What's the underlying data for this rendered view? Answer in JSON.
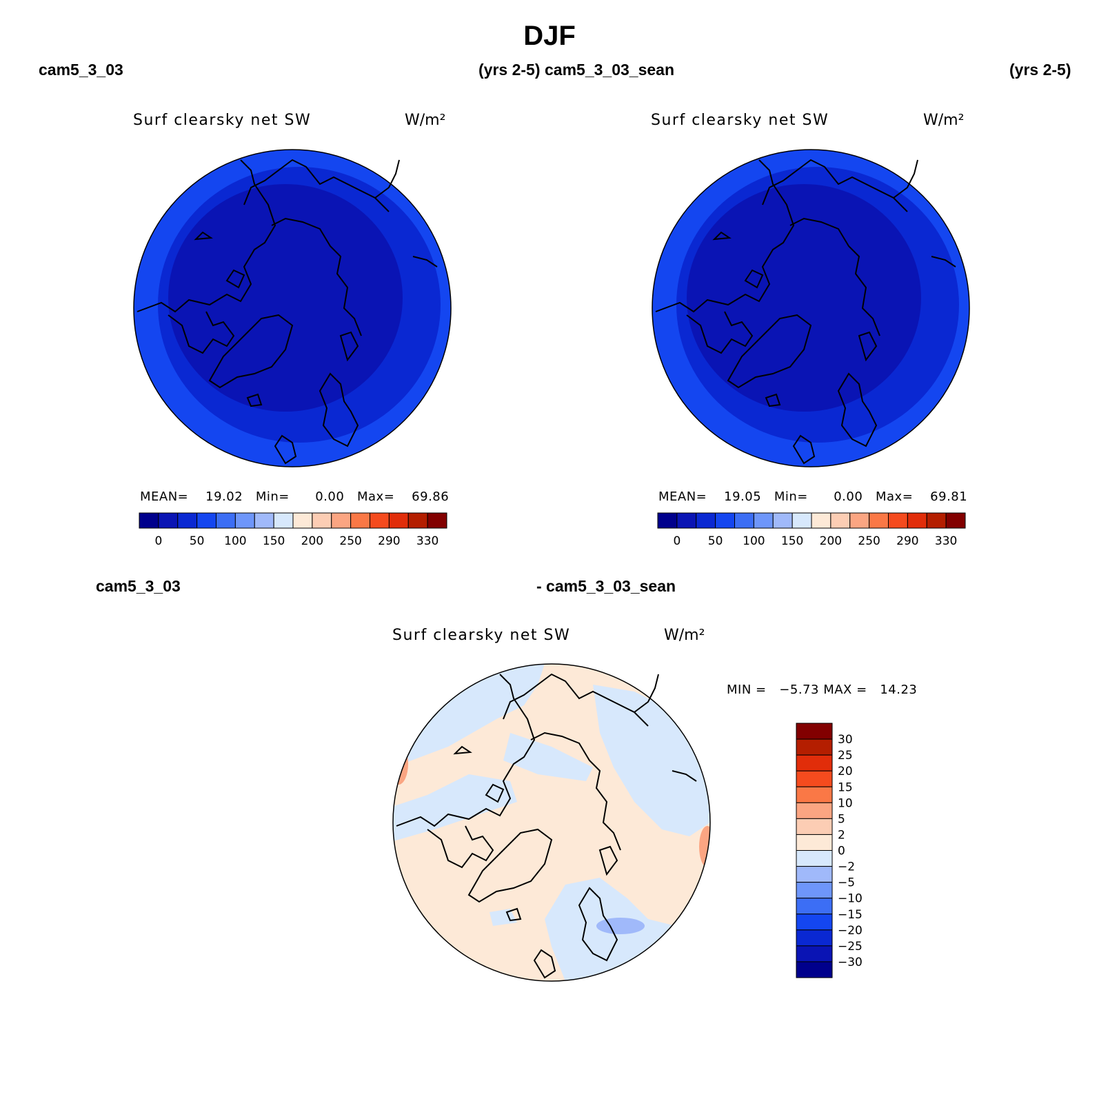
{
  "page": {
    "title": "DJF"
  },
  "headers": {
    "top_left_case": "cam5_3_03",
    "top_left_years": "(yrs 2-5)",
    "top_right_case": "cam5_3_03_sean",
    "top_right_years": "(yrs 2-5)",
    "bottom_left_case": "cam5_3_03",
    "bottom_right_case": "- cam5_3_03_sean"
  },
  "chart_data": [
    {
      "type": "heatmap",
      "projection": "north-polar-stereographic",
      "title": "Surf clearsky net SW",
      "units": "W/m²",
      "stats": {
        "mean_label": "MEAN=",
        "mean": "19.02",
        "min_label": "Min=",
        "min": "0.00",
        "max_label": "Max=",
        "max": "69.86"
      },
      "colorbar": {
        "orientation": "horizontal",
        "tick_labels": [
          "0",
          "50",
          "100",
          "150",
          "200",
          "250",
          "290",
          "330"
        ],
        "colors": [
          "#00008c",
          "#0a14b4",
          "#0a28d2",
          "#1446f0",
          "#3c6ef5",
          "#6e96fa",
          "#a0b9fa",
          "#d7e8fc",
          "#fde9d7",
          "#fccdb4",
          "#fba582",
          "#fa7846",
          "#f54b1e",
          "#e12d0a",
          "#b41e00",
          "#820000"
        ]
      },
      "field": {
        "range": [
          0,
          69.86
        ],
        "high_color": "#1446f0",
        "mid_color": "#0a28d2",
        "low_color": "#0a14b4"
      }
    },
    {
      "type": "heatmap",
      "projection": "north-polar-stereographic",
      "title": "Surf clearsky net SW",
      "units": "W/m²",
      "stats": {
        "mean_label": "MEAN=",
        "mean": "19.05",
        "min_label": "Min=",
        "min": "0.00",
        "max_label": "Max=",
        "max": "69.81"
      },
      "colorbar": {
        "orientation": "horizontal",
        "tick_labels": [
          "0",
          "50",
          "100",
          "150",
          "200",
          "250",
          "290",
          "330"
        ],
        "colors": [
          "#00008c",
          "#0a14b4",
          "#0a28d2",
          "#1446f0",
          "#3c6ef5",
          "#6e96fa",
          "#a0b9fa",
          "#d7e8fc",
          "#fde9d7",
          "#fccdb4",
          "#fba582",
          "#fa7846",
          "#f54b1e",
          "#e12d0a",
          "#b41e00",
          "#820000"
        ]
      },
      "field": {
        "range": [
          0,
          69.81
        ],
        "high_color": "#1446f0",
        "mid_color": "#0a28d2",
        "low_color": "#0a14b4"
      }
    },
    {
      "type": "heatmap",
      "projection": "north-polar-stereographic",
      "title": "Surf clearsky net SW",
      "units": "W/m²",
      "stats": {
        "min_label": "MIN =",
        "min": "−5.73",
        "max_label": "MAX =",
        "max": "14.23"
      },
      "colorbar": {
        "orientation": "vertical",
        "tick_labels": [
          "30",
          "25",
          "20",
          "15",
          "10",
          "5",
          "2",
          "0",
          "−2",
          "−5",
          "−10",
          "−15",
          "−20",
          "−25",
          "−30"
        ],
        "colors": [
          "#820000",
          "#b41e00",
          "#e12d0a",
          "#f54b1e",
          "#fa7846",
          "#fba582",
          "#fccdb4",
          "#fde9d7",
          "#d7e8fc",
          "#a0b9fa",
          "#6e96fa",
          "#3c6ef5",
          "#1446f0",
          "#0a28d2",
          "#0a14b4",
          "#00008c"
        ]
      },
      "field": {
        "range": [
          -5.73,
          14.23
        ],
        "positive_color": "#fde9d7",
        "negative_color": "#d7e8fc",
        "strong_positive_color": "#fba582",
        "strong_negative_color": "#a0b9fa"
      }
    }
  ]
}
